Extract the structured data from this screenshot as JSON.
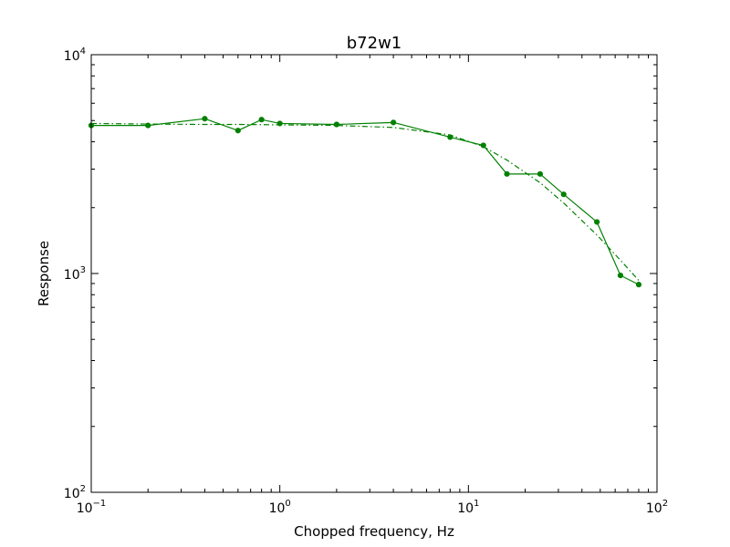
{
  "chart_data": {
    "type": "line",
    "title": "b72w1",
    "xlabel": "Chopped frequency, Hz",
    "ylabel": "Response",
    "xscale": "log",
    "yscale": "log",
    "xlim": [
      0.1,
      100
    ],
    "ylim": [
      100,
      10000
    ],
    "x_ticks": [
      {
        "value": 0.1,
        "base": "10",
        "exp": "−1"
      },
      {
        "value": 1,
        "base": "10",
        "exp": "0"
      },
      {
        "value": 10,
        "base": "10",
        "exp": "1"
      },
      {
        "value": 100,
        "base": "10",
        "exp": "2"
      }
    ],
    "y_ticks": [
      {
        "value": 100,
        "base": "10",
        "exp": "2"
      },
      {
        "value": 1000,
        "base": "10",
        "exp": "3"
      },
      {
        "value": 10000,
        "base": "10",
        "exp": "4"
      }
    ],
    "grid": false,
    "series": [
      {
        "style": "solid-with-markers",
        "color": "#008000",
        "x": [
          0.1,
          0.2,
          0.4,
          0.6,
          0.8,
          1,
          2,
          4,
          8,
          12,
          16,
          24,
          32,
          48,
          64,
          80
        ],
        "y": [
          4750,
          4750,
          5100,
          4500,
          5050,
          4850,
          4800,
          4900,
          4200,
          3850,
          2850,
          2850,
          2300,
          1720,
          980,
          890
        ]
      },
      {
        "style": "dash-dot",
        "color": "#008000",
        "x": [
          0.1,
          0.2,
          0.4,
          0.6,
          0.8,
          1,
          2,
          4,
          8,
          12,
          16,
          24,
          32,
          48,
          64,
          80
        ],
        "y": [
          4850,
          4820,
          4800,
          4800,
          4790,
          4780,
          4750,
          4650,
          4300,
          3800,
          3300,
          2600,
          2100,
          1500,
          1150,
          930
        ]
      }
    ]
  }
}
